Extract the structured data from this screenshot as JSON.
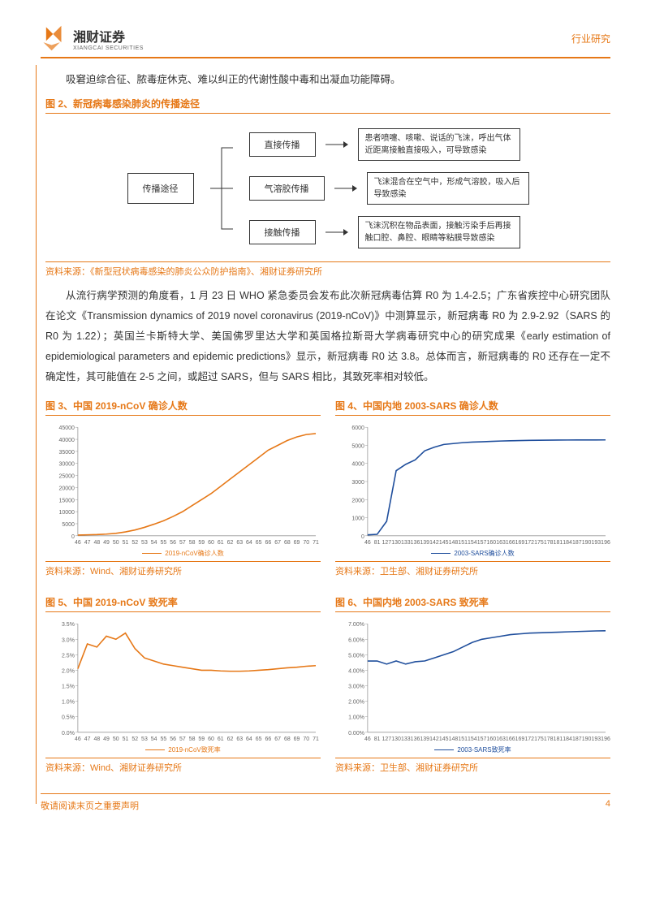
{
  "header": {
    "logo_text": "湘财证券",
    "logo_sub": "XIANGCAI SECURITIES",
    "doc_type": "行业研究"
  },
  "body": {
    "p1": "吸窘迫综合征、脓毒症休克、难以纠正的代谢性酸中毒和出凝血功能障碍。",
    "p2": "从流行病学预测的角度看，1 月 23 日 WHO 紧急委员会发布此次新冠病毒估算 R0 为 1.4-2.5；广东省疾控中心研究团队在论文《Transmission dynamics of 2019 novel coronavirus (2019-nCoV)》中测算显示，新冠病毒 R0 为 2.9-2.92（SARS 的 R0 为 1.22）；英国兰卡斯特大学、美国佛罗里达大学和英国格拉斯哥大学病毒研究中心的研究成果《early estimation of epidemiological parameters and epidemic predictions》显示，新冠病毒 R0 达 3.8。总体而言，新冠病毒的 R0 还存在一定不确定性，其可能值在 2-5 之间，或超过 SARS，但与 SARS 相比，其致死率相对较低。"
  },
  "fig2": {
    "title": "图 2、新冠病毒感染肺炎的传播途径",
    "root": "传播途径",
    "rows": [
      {
        "label": "直接传播",
        "desc": "患者喷嚏、咳嗽、说话的飞沫，呼出气体近距离接触直接吸入，可导致感染"
      },
      {
        "label": "气溶胶传播",
        "desc": "飞沫混合在空气中，形成气溶胶，吸入后导致感染"
      },
      {
        "label": "接触传播",
        "desc": "飞沫沉积在物品表面，接触污染手后再接触口腔、鼻腔、眼睛等粘膜导致感染"
      }
    ],
    "source": "资料来源：《新型冠状病毒感染的肺炎公众防护指南》、湘财证券研究所"
  },
  "fig3": {
    "title": "图 3、中国 2019-nCoV 确诊人数",
    "type": "line",
    "x": [
      46,
      47,
      48,
      49,
      50,
      51,
      52,
      53,
      54,
      55,
      56,
      57,
      58,
      59,
      60,
      61,
      62,
      63,
      64,
      65,
      66,
      67,
      68,
      69,
      70,
      71
    ],
    "y": [
      300,
      400,
      500,
      700,
      1000,
      1600,
      2400,
      3500,
      4800,
      6200,
      8000,
      10000,
      12500,
      15000,
      17500,
      20500,
      23500,
      26500,
      29500,
      32500,
      35500,
      37500,
      39500,
      41000,
      42000,
      42400
    ],
    "ylim": [
      0,
      45000
    ],
    "yticks": [
      0,
      5000,
      10000,
      15000,
      20000,
      25000,
      30000,
      35000,
      40000,
      45000
    ],
    "color": "#e67817",
    "legend": "2019-nCoV确诊人数",
    "source": "资料来源：Wind、湘财证券研究所"
  },
  "fig4": {
    "title": "图 4、中国内地 2003-SARS 确诊人数",
    "type": "line",
    "x_lbl": [
      46,
      81,
      127,
      130,
      133,
      136,
      139,
      142,
      145,
      148,
      151,
      154,
      157,
      160,
      163,
      166,
      169,
      172,
      175,
      178,
      181,
      184,
      187,
      190,
      193,
      196
    ],
    "y": [
      50,
      80,
      800,
      3600,
      3950,
      4200,
      4700,
      4900,
      5050,
      5100,
      5150,
      5180,
      5200,
      5220,
      5240,
      5255,
      5265,
      5275,
      5282,
      5288,
      5293,
      5296,
      5298,
      5300,
      5301,
      5302
    ],
    "ylim": [
      0,
      6000
    ],
    "yticks": [
      0,
      1000,
      2000,
      3000,
      4000,
      5000,
      6000
    ],
    "color": "#1f4e9c",
    "legend": "2003-SARS确诊人数",
    "source": "资料来源：卫生部、湘财证券研究所"
  },
  "fig5": {
    "title": "图 5、中国 2019-nCoV 致死率",
    "type": "line",
    "x": [
      46,
      47,
      48,
      49,
      50,
      51,
      52,
      53,
      54,
      55,
      56,
      57,
      58,
      59,
      60,
      61,
      62,
      63,
      64,
      65,
      66,
      67,
      68,
      69,
      70,
      71
    ],
    "y": [
      2.05,
      2.85,
      2.75,
      3.1,
      3.0,
      3.2,
      2.7,
      2.4,
      2.3,
      2.2,
      2.15,
      2.1,
      2.05,
      2.0,
      2.0,
      1.98,
      1.97,
      1.97,
      1.98,
      2.0,
      2.02,
      2.05,
      2.08,
      2.1,
      2.13,
      2.15
    ],
    "ylim": [
      0,
      3.5
    ],
    "yticks": [
      0,
      0.5,
      1.0,
      1.5,
      2.0,
      2.5,
      3.0,
      3.5
    ],
    "ytick_fmt": "percent1",
    "color": "#e67817",
    "legend": "2019-nCoV致死率",
    "source": "资料来源：Wind、湘财证券研究所"
  },
  "fig6": {
    "title": "图 6、中国内地 2003-SARS 致死率",
    "type": "line",
    "x_lbl": [
      46,
      81,
      127,
      130,
      133,
      136,
      139,
      142,
      145,
      148,
      151,
      154,
      157,
      160,
      163,
      166,
      169,
      172,
      175,
      178,
      181,
      184,
      187,
      190,
      193,
      196
    ],
    "y": [
      4.6,
      4.6,
      4.4,
      4.6,
      4.4,
      4.55,
      4.6,
      4.8,
      5.0,
      5.2,
      5.5,
      5.8,
      6.0,
      6.1,
      6.2,
      6.3,
      6.35,
      6.4,
      6.42,
      6.44,
      6.46,
      6.48,
      6.5,
      6.52,
      6.54,
      6.55
    ],
    "ylim": [
      0,
      7.0
    ],
    "yticks": [
      0,
      1,
      2,
      3,
      4,
      5,
      6,
      7
    ],
    "ytick_fmt": "percent2",
    "color": "#1f4e9c",
    "legend": "2003-SARS致死率",
    "source": "资料来源：卫生部、湘财证券研究所"
  },
  "footer": {
    "left": "敬请阅读末页之重要声明",
    "page": "4"
  },
  "style": {
    "accent": "#e67817",
    "blue": "#1f4e9c",
    "grid": "#cccccc"
  }
}
